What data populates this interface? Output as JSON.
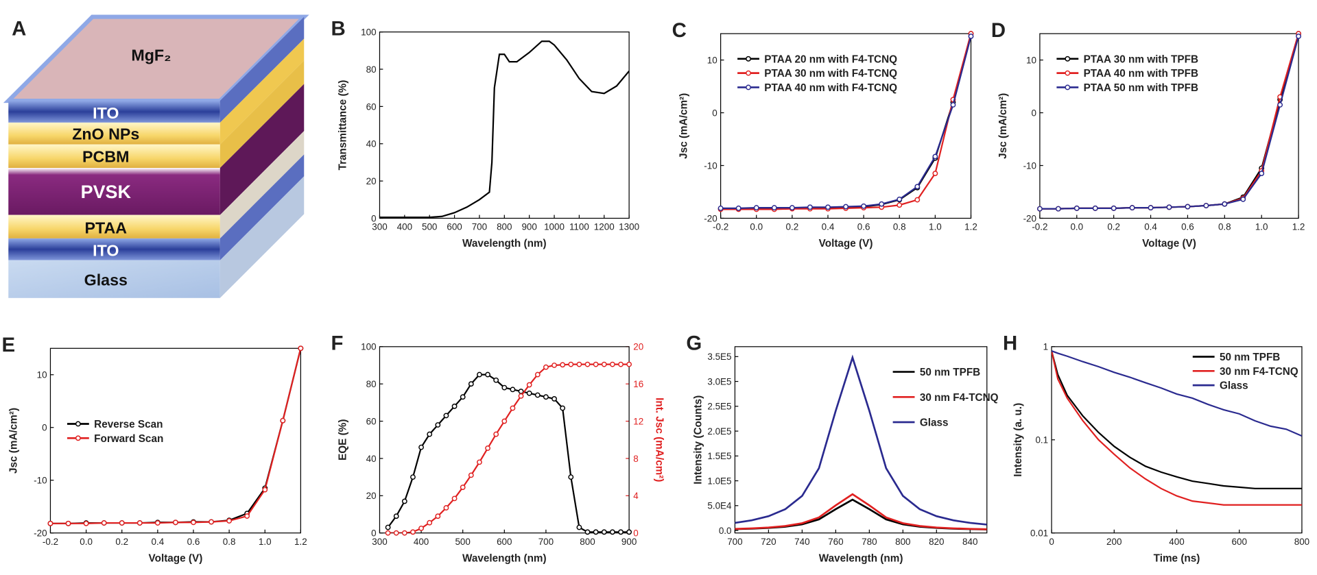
{
  "diagram": {
    "panel": "A",
    "top": "MgF₂",
    "layers": [
      "ITO",
      "ZnO NPs",
      "PCBM",
      "PVSK",
      "PTAA",
      "ITO",
      "Glass"
    ]
  },
  "chart_data": [
    {
      "type": "line",
      "panel": "B",
      "xlabel": "Wavelength (nm)",
      "ylabel": "Transmittance (%)",
      "xlim": [
        300,
        1300
      ],
      "xticks": [
        300,
        400,
        500,
        600,
        700,
        800,
        900,
        1000,
        1100,
        1200,
        1300
      ],
      "ylim": [
        0,
        100
      ],
      "yticks": [
        0,
        20,
        40,
        60,
        80,
        100
      ],
      "x": [
        300,
        400,
        500,
        550,
        600,
        650,
        700,
        740,
        750,
        760,
        780,
        800,
        820,
        850,
        900,
        950,
        980,
        1000,
        1050,
        1100,
        1150,
        1200,
        1250,
        1300
      ],
      "series": [
        {
          "color": "#000000",
          "values": [
            0.5,
            0.5,
            0.5,
            1,
            3,
            6,
            10,
            14,
            30,
            70,
            88,
            88,
            84,
            84,
            89,
            95,
            95,
            93,
            85,
            75,
            68,
            67,
            71,
            79
          ]
        }
      ]
    },
    {
      "type": "line",
      "panel": "C",
      "xlabel": "Voltage (V)",
      "ylabel": "Jsc (mA/cm²)",
      "markers": true,
      "legend": "upper left",
      "xlim": [
        -0.2,
        1.2
      ],
      "xticks": [
        -0.2,
        {
          "value": 0,
          "label": "0.0"
        },
        0.2,
        0.4,
        0.6,
        0.8,
        {
          "value": 1,
          "label": "1.0"
        },
        1.2
      ],
      "ylim": [
        -20,
        15
      ],
      "yticks": [
        -20,
        -10,
        0,
        10
      ],
      "x": [
        -0.2,
        -0.1,
        0,
        0.1,
        0.2,
        0.3,
        0.4,
        0.5,
        0.6,
        0.7,
        0.8,
        0.9,
        1.0,
        1.1,
        1.2
      ],
      "series": [
        {
          "name": "PTAA 20 nm with F4-TCNQ",
          "color": "#000000",
          "values": [
            -18.2,
            -18.2,
            -18.1,
            -18.1,
            -18.1,
            -18.0,
            -18.0,
            -17.9,
            -17.8,
            -17.4,
            -16.5,
            -14.2,
            -8.6,
            2.0,
            15
          ]
        },
        {
          "name": "PTAA 30 nm with F4-TCNQ",
          "color": "#e02020",
          "values": [
            -18.3,
            -18.3,
            -18.3,
            -18.3,
            -18.2,
            -18.2,
            -18.2,
            -18.1,
            -18.0,
            -17.9,
            -17.5,
            -16.5,
            -11.5,
            2.5,
            15
          ]
        },
        {
          "name": "PTAA 40 nm with F4-TCNQ",
          "color": "#2a2a8f",
          "values": [
            -18.1,
            -18.1,
            -18.0,
            -18.0,
            -18.0,
            -17.9,
            -17.9,
            -17.8,
            -17.7,
            -17.3,
            -16.4,
            -14.0,
            -8.3,
            1.5,
            14.5
          ]
        }
      ]
    },
    {
      "type": "line",
      "panel": "D",
      "xlabel": "Voltage (V)",
      "ylabel": "Jsc (mA/cm²)",
      "markers": true,
      "legend": "upper left",
      "xlim": [
        -0.2,
        1.2
      ],
      "xticks": [
        -0.2,
        {
          "value": 0,
          "label": "0.0"
        },
        0.2,
        0.4,
        0.6,
        0.8,
        {
          "value": 1,
          "label": "1.0"
        },
        1.2
      ],
      "ylim": [
        -20,
        15
      ],
      "yticks": [
        -20,
        -10,
        0,
        10
      ],
      "x": [
        -0.2,
        -0.1,
        0,
        0.1,
        0.2,
        0.3,
        0.4,
        0.5,
        0.6,
        0.7,
        0.8,
        0.9,
        1.0,
        1.1,
        1.2
      ],
      "series": [
        {
          "name": "PTAA 30 nm with TPFB",
          "color": "#000000",
          "values": [
            -18.2,
            -18.2,
            -18.1,
            -18.1,
            -18.1,
            -18.0,
            -18.0,
            -17.9,
            -17.8,
            -17.6,
            -17.3,
            -16.0,
            -10.5,
            2.5,
            15
          ]
        },
        {
          "name": "PTAA 40 nm with TPFB",
          "color": "#e02020",
          "values": [
            -18.2,
            -18.2,
            -18.1,
            -18.1,
            -18.1,
            -18.0,
            -18.0,
            -17.9,
            -17.8,
            -17.6,
            -17.3,
            -16.2,
            -11.0,
            3.0,
            15
          ]
        },
        {
          "name": "PTAA 50 nm with TPFB",
          "color": "#2a2a8f",
          "values": [
            -18.2,
            -18.2,
            -18.1,
            -18.1,
            -18.1,
            -18.0,
            -18.0,
            -17.9,
            -17.8,
            -17.6,
            -17.3,
            -16.4,
            -11.5,
            1.5,
            14.5
          ]
        }
      ]
    },
    {
      "type": "line",
      "panel": "E",
      "xlabel": "Voltage (V)",
      "ylabel": "Jsc (mA/cm²)",
      "markers": true,
      "legend": "center left",
      "xlim": [
        -0.2,
        1.2
      ],
      "xticks": [
        -0.2,
        {
          "value": 0,
          "label": "0.0"
        },
        0.2,
        0.4,
        0.6,
        0.8,
        {
          "value": 1,
          "label": "1.0"
        },
        1.2
      ],
      "ylim": [
        -20,
        15
      ],
      "yticks": [
        -20,
        -10,
        0,
        10
      ],
      "x": [
        -0.2,
        -0.1,
        0,
        0.1,
        0.2,
        0.3,
        0.4,
        0.5,
        0.6,
        0.7,
        0.8,
        0.9,
        1.0,
        1.1,
        1.2
      ],
      "series": [
        {
          "name": "Reverse Scan",
          "color": "#000000",
          "values": [
            -18.2,
            -18.2,
            -18.1,
            -18.1,
            -18.1,
            -18.1,
            -18.0,
            -18.0,
            -17.9,
            -17.9,
            -17.6,
            -16.3,
            -11.5,
            1.3,
            15
          ]
        },
        {
          "name": "Forward Scan",
          "color": "#e02020",
          "values": [
            -18.2,
            -18.2,
            -18.2,
            -18.1,
            -18.1,
            -18.1,
            -18.1,
            -18.0,
            -18.0,
            -17.9,
            -17.7,
            -16.8,
            -11.8,
            1.3,
            15
          ]
        }
      ]
    },
    {
      "type": "line",
      "panel": "F",
      "xlabel": "Wavelength (nm)",
      "ylabel": "EQE (%)",
      "y2label": "Int. Jsc (mA/cm²)",
      "markers": true,
      "xlim": [
        300,
        900
      ],
      "xticks": [
        300,
        400,
        500,
        600,
        700,
        800,
        900
      ],
      "ylim": [
        0,
        100
      ],
      "yticks": [
        0,
        20,
        40,
        60,
        80,
        100
      ],
      "y2lim": [
        0,
        20
      ],
      "y2ticks": [
        0,
        4,
        8,
        12,
        16,
        20
      ],
      "x": [
        320,
        340,
        360,
        380,
        400,
        420,
        440,
        460,
        480,
        500,
        520,
        540,
        560,
        580,
        600,
        620,
        640,
        660,
        680,
        700,
        720,
        740,
        760,
        780,
        800,
        820,
        840,
        860,
        880,
        900
      ],
      "series": [
        {
          "color": "#000000",
          "values": [
            3,
            9,
            17,
            30,
            46,
            53,
            58,
            63,
            68,
            73,
            80,
            85,
            85,
            82,
            78,
            77,
            76,
            75,
            74,
            73,
            72,
            67,
            30,
            3,
            0.5,
            0.5,
            0.5,
            0.5,
            0.5,
            0.5
          ]
        },
        {
          "color": "#e02020",
          "axis": "y2",
          "values": [
            0,
            0,
            0,
            0.1,
            0.5,
            1.1,
            1.8,
            2.7,
            3.7,
            4.9,
            6.2,
            7.6,
            9.1,
            10.6,
            12,
            13.4,
            14.7,
            15.9,
            17.0,
            17.8,
            18.0,
            18.05,
            18.1,
            18.1,
            18.1,
            18.1,
            18.1,
            18.1,
            18.1,
            18.1
          ]
        }
      ]
    },
    {
      "type": "line",
      "panel": "G",
      "xlabel": "Wavelength (nm)",
      "ylabel": "Intensity (Counts)",
      "legend": "upper right",
      "xlim": [
        700,
        850
      ],
      "xticks": [
        700,
        720,
        740,
        760,
        780,
        800,
        820,
        840
      ],
      "ylim": [
        -5000,
        370000
      ],
      "yticks": [
        {
          "value": 0,
          "label": "0.0"
        },
        {
          "value": 50000,
          "label": "5.0E4"
        },
        {
          "value": 100000,
          "label": "1.0E5"
        },
        {
          "value": 150000,
          "label": "1.5E5"
        },
        {
          "value": 200000,
          "label": "2.0E5"
        },
        {
          "value": 250000,
          "label": "2.5E5"
        },
        {
          "value": 300000,
          "label": "3.0E5"
        },
        {
          "value": 350000,
          "label": "3.5E5"
        }
      ],
      "x": [
        700,
        710,
        720,
        730,
        740,
        750,
        760,
        770,
        780,
        790,
        800,
        810,
        820,
        830,
        840,
        850
      ],
      "series": [
        {
          "name": "50 nm TPFB",
          "color": "#000000",
          "values": [
            2700,
            3600,
            5100,
            7600,
            12400,
            22300,
            42900,
            62000,
            42900,
            22300,
            12400,
            7600,
            5100,
            3600,
            2700,
            2100
          ]
        },
        {
          "name": "30 nm F4-TCNQ",
          "color": "#e02020",
          "values": [
            3200,
            4300,
            6000,
            9000,
            14600,
            26300,
            50600,
            73000,
            50600,
            26300,
            14600,
            9000,
            6000,
            4300,
            3200,
            2500
          ]
        },
        {
          "name": "Glass",
          "color": "#2a2a8f",
          "values": [
            15280,
            20470,
            28740,
            42910,
            69600,
            125270,
            240990,
            348000,
            240990,
            125270,
            69600,
            42910,
            28740,
            20470,
            15280,
            11820
          ]
        }
      ]
    },
    {
      "type": "line",
      "panel": "H",
      "xlabel": "Time (ns)",
      "ylabel": "Intensity (a. u.)",
      "yscale": "log",
      "legend": "upper right",
      "xlim": [
        0,
        800
      ],
      "xticks": [
        0,
        200,
        400,
        600,
        800
      ],
      "ylim": [
        0.01,
        1
      ],
      "yticks": [
        0.01,
        0.1,
        1
      ],
      "x": [
        0,
        20,
        50,
        100,
        150,
        200,
        250,
        300,
        350,
        400,
        450,
        500,
        550,
        600,
        650,
        700,
        750,
        800
      ],
      "series": [
        {
          "name": "50 nm TPFB",
          "color": "#000000",
          "values": [
            0.9,
            0.5,
            0.3,
            0.18,
            0.12,
            0.085,
            0.065,
            0.052,
            0.045,
            0.04,
            0.036,
            0.034,
            0.032,
            0.031,
            0.03,
            0.03,
            0.03,
            0.03
          ]
        },
        {
          "name": "30 nm F4-TCNQ",
          "color": "#e02020",
          "values": [
            0.9,
            0.45,
            0.28,
            0.16,
            0.1,
            0.07,
            0.05,
            0.038,
            0.03,
            0.025,
            0.022,
            0.021,
            0.02,
            0.02,
            0.02,
            0.02,
            0.02,
            0.02
          ]
        },
        {
          "name": "Glass",
          "color": "#2a2a8f",
          "values": [
            0.9,
            0.85,
            0.79,
            0.69,
            0.61,
            0.53,
            0.47,
            0.41,
            0.36,
            0.31,
            0.28,
            0.24,
            0.21,
            0.19,
            0.16,
            0.14,
            0.13,
            0.11
          ]
        }
      ]
    }
  ]
}
